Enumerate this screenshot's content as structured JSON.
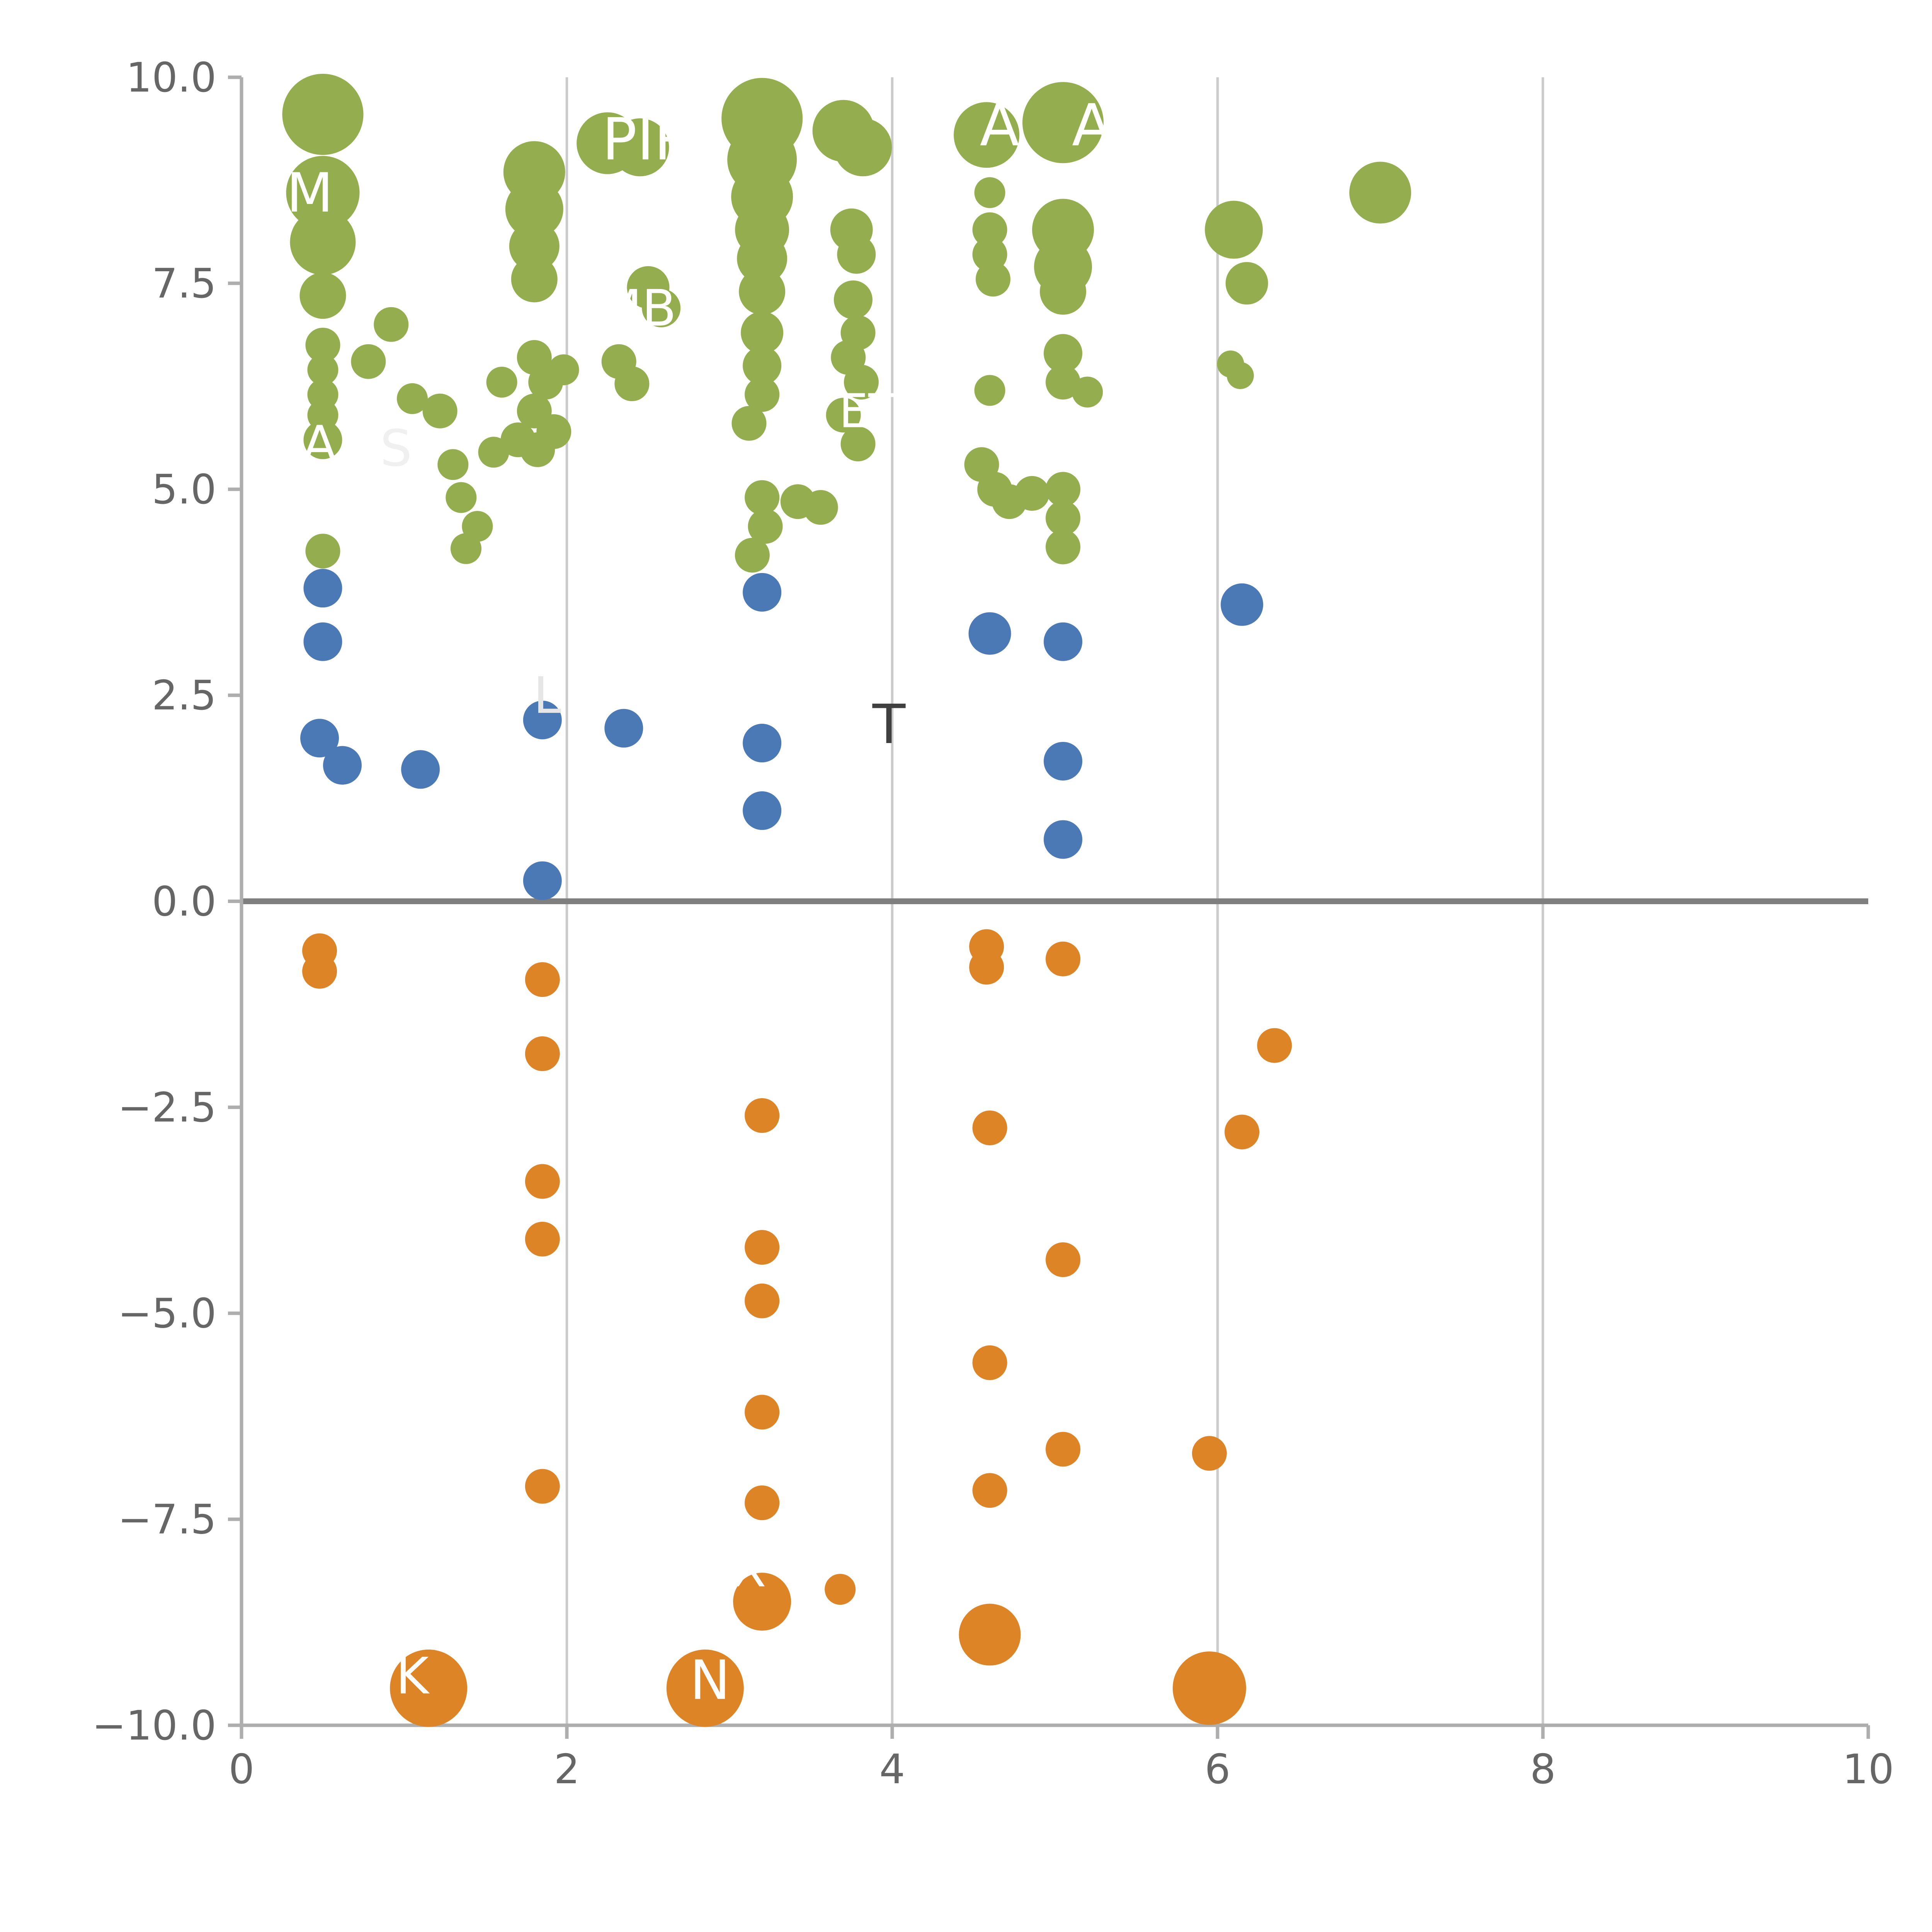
{
  "figure": {
    "background": "#ffffff"
  },
  "chart_data": {
    "type": "scatter",
    "title": "",
    "xlabel": "",
    "ylabel": "",
    "xlim": [
      0,
      10
    ],
    "ylim": [
      -10,
      10
    ],
    "xticks": [
      {
        "v": 0,
        "label": "0"
      },
      {
        "v": 2,
        "label": "2"
      },
      {
        "v": 4,
        "label": "4"
      },
      {
        "v": 6,
        "label": "6"
      },
      {
        "v": 8,
        "label": "8"
      },
      {
        "v": 10,
        "label": "10"
      }
    ],
    "yticks": [
      {
        "v": -10,
        "label": "−10.0"
      },
      {
        "v": -7.5,
        "label": "−7.5"
      },
      {
        "v": -5,
        "label": "−5.0"
      },
      {
        "v": -2.5,
        "label": "−2.5"
      },
      {
        "v": 0,
        "label": "0.0"
      },
      {
        "v": 2.5,
        "label": "2.5"
      },
      {
        "v": 5,
        "label": "5.0"
      },
      {
        "v": 7.5,
        "label": "7.5"
      },
      {
        "v": 10,
        "label": "10.0"
      }
    ],
    "gridlines": {
      "vertical_at": [
        2,
        4,
        6,
        8
      ],
      "horizontal": false,
      "color": "#cbcbcb",
      "width": 1.3
    },
    "zero_line": {
      "y": 0,
      "color": "#7f7f7f",
      "width": 3
    },
    "axis_color": "#aeaeae",
    "tick_label_color": "#666666",
    "tick_label_size": 21,
    "point_format": [
      "x",
      "y",
      "r_px"
    ],
    "series": [
      {
        "name": "group-positive-green",
        "color": "#94ad4e",
        "points": [
          [
            0.5,
            9.55,
            21
          ],
          [
            0.5,
            8.6,
            19
          ],
          [
            0.5,
            8.0,
            17
          ],
          [
            0.5,
            7.35,
            12
          ],
          [
            0.5,
            6.75,
            9
          ],
          [
            0.5,
            6.45,
            8
          ],
          [
            0.5,
            6.15,
            8
          ],
          [
            0.5,
            5.9,
            8
          ],
          [
            0.5,
            5.6,
            10
          ],
          [
            0.5,
            4.25,
            9
          ],
          [
            0.78,
            6.55,
            9
          ],
          [
            0.92,
            7.0,
            9
          ],
          [
            1.05,
            6.1,
            8
          ],
          [
            1.22,
            5.95,
            9
          ],
          [
            1.3,
            5.3,
            8
          ],
          [
            1.35,
            4.9,
            8
          ],
          [
            1.45,
            4.55,
            8
          ],
          [
            1.38,
            4.28,
            8
          ],
          [
            1.55,
            5.45,
            8
          ],
          [
            1.7,
            5.6,
            9
          ],
          [
            1.6,
            6.3,
            8
          ],
          [
            1.8,
            8.85,
            16
          ],
          [
            1.8,
            8.4,
            15
          ],
          [
            1.8,
            7.95,
            13
          ],
          [
            1.8,
            7.55,
            12
          ],
          [
            1.8,
            6.6,
            9
          ],
          [
            1.87,
            6.3,
            9
          ],
          [
            1.8,
            5.95,
            9
          ],
          [
            1.92,
            5.7,
            9
          ],
          [
            1.82,
            5.48,
            9
          ],
          [
            1.98,
            6.45,
            8
          ],
          [
            2.25,
            9.2,
            16
          ],
          [
            2.45,
            9.15,
            15
          ],
          [
            2.5,
            7.45,
            11
          ],
          [
            2.58,
            7.2,
            10
          ],
          [
            2.32,
            6.55,
            9
          ],
          [
            2.4,
            6.28,
            9
          ],
          [
            3.2,
            9.5,
            21
          ],
          [
            3.2,
            9.0,
            18
          ],
          [
            3.2,
            8.55,
            16
          ],
          [
            3.2,
            8.15,
            14
          ],
          [
            3.2,
            7.8,
            13
          ],
          [
            3.2,
            7.4,
            12
          ],
          [
            3.2,
            6.9,
            11
          ],
          [
            3.2,
            6.5,
            10
          ],
          [
            3.2,
            6.15,
            9
          ],
          [
            3.12,
            5.8,
            9
          ],
          [
            3.2,
            4.9,
            9
          ],
          [
            3.22,
            4.55,
            9
          ],
          [
            3.14,
            4.2,
            9
          ],
          [
            3.42,
            4.85,
            9
          ],
          [
            3.56,
            4.78,
            9
          ],
          [
            3.7,
            9.35,
            16
          ],
          [
            3.82,
            9.15,
            15
          ],
          [
            3.75,
            8.15,
            11
          ],
          [
            3.78,
            7.85,
            10
          ],
          [
            3.76,
            7.3,
            10
          ],
          [
            3.79,
            6.9,
            9
          ],
          [
            3.73,
            6.6,
            9
          ],
          [
            3.81,
            6.3,
            9
          ],
          [
            3.7,
            5.9,
            9
          ],
          [
            3.79,
            5.55,
            9
          ],
          [
            4.58,
            9.3,
            17
          ],
          [
            4.6,
            8.6,
            8
          ],
          [
            4.6,
            8.15,
            9
          ],
          [
            4.6,
            7.85,
            9
          ],
          [
            4.62,
            7.55,
            9
          ],
          [
            4.6,
            6.2,
            8
          ],
          [
            4.55,
            5.3,
            9
          ],
          [
            4.63,
            5.0,
            9
          ],
          [
            4.72,
            4.85,
            9
          ],
          [
            4.86,
            4.95,
            9
          ],
          [
            5.05,
            9.45,
            21
          ],
          [
            5.05,
            8.15,
            16
          ],
          [
            5.05,
            7.7,
            15
          ],
          [
            5.05,
            7.4,
            12
          ],
          [
            5.05,
            6.65,
            10
          ],
          [
            5.05,
            6.3,
            9
          ],
          [
            5.2,
            6.18,
            8
          ],
          [
            5.05,
            5.0,
            9
          ],
          [
            5.05,
            4.65,
            9
          ],
          [
            5.05,
            4.3,
            9
          ],
          [
            6.1,
            8.15,
            15
          ],
          [
            6.18,
            7.5,
            11
          ],
          [
            6.08,
            6.52,
            7
          ],
          [
            6.14,
            6.38,
            7
          ],
          [
            7.0,
            8.6,
            16
          ]
        ]
      },
      {
        "name": "group-low-positive-blue",
        "color": "#4a79b5",
        "points": [
          [
            0.5,
            3.8,
            10
          ],
          [
            0.5,
            3.15,
            10
          ],
          [
            0.48,
            1.98,
            10
          ],
          [
            0.62,
            1.65,
            10
          ],
          [
            1.1,
            1.6,
            10
          ],
          [
            1.85,
            2.2,
            10
          ],
          [
            1.85,
            0.25,
            10
          ],
          [
            2.35,
            2.1,
            10
          ],
          [
            3.2,
            3.75,
            10
          ],
          [
            3.2,
            1.92,
            10
          ],
          [
            3.2,
            1.1,
            10
          ],
          [
            4.6,
            3.25,
            11
          ],
          [
            5.05,
            3.15,
            10
          ],
          [
            5.05,
            1.7,
            10
          ],
          [
            5.05,
            0.75,
            10
          ],
          [
            6.15,
            3.6,
            11
          ]
        ]
      },
      {
        "name": "group-negative-orange",
        "color": "#dd8427",
        "points": [
          [
            0.48,
            -0.6,
            9
          ],
          [
            0.48,
            -0.85,
            9
          ],
          [
            1.15,
            -9.55,
            20
          ],
          [
            1.85,
            -0.95,
            9
          ],
          [
            1.85,
            -1.85,
            9
          ],
          [
            1.85,
            -3.4,
            9
          ],
          [
            1.85,
            -4.1,
            9
          ],
          [
            1.85,
            -7.1,
            9
          ],
          [
            2.85,
            -9.55,
            20
          ],
          [
            3.2,
            -2.6,
            9
          ],
          [
            3.2,
            -4.2,
            9
          ],
          [
            3.2,
            -4.85,
            9
          ],
          [
            3.2,
            -6.2,
            9
          ],
          [
            3.2,
            -7.3,
            9
          ],
          [
            3.2,
            -8.5,
            15
          ],
          [
            3.68,
            -8.35,
            8
          ],
          [
            4.58,
            -0.55,
            9
          ],
          [
            4.58,
            -0.8,
            9
          ],
          [
            4.6,
            -2.75,
            9
          ],
          [
            4.6,
            -5.6,
            9
          ],
          [
            4.6,
            -7.15,
            9
          ],
          [
            4.6,
            -8.9,
            16
          ],
          [
            5.05,
            -0.7,
            9
          ],
          [
            5.05,
            -4.35,
            9
          ],
          [
            5.05,
            -6.65,
            9
          ],
          [
            5.95,
            -6.7,
            9
          ],
          [
            5.95,
            -9.55,
            19
          ],
          [
            6.15,
            -2.8,
            9
          ],
          [
            6.35,
            -1.75,
            9
          ]
        ]
      }
    ],
    "labels": [
      {
        "text": "M",
        "x": 0.42,
        "y": 8.6,
        "color": "#ffffff",
        "size": 28
      },
      {
        "text": "PIR",
        "x": 2.5,
        "y": 9.25,
        "color": "#ffffff",
        "size": 30
      },
      {
        "text": "A",
        "x": 4.66,
        "y": 9.42,
        "color": "#ffffff",
        "size": 30
      },
      {
        "text": "AR",
        "x": 5.35,
        "y": 9.42,
        "color": "#ffffff",
        "size": 30
      },
      {
        "text": "MBY",
        "x": 2.52,
        "y": 7.2,
        "color": "#ffffff",
        "size": 26
      },
      {
        "text": "A",
        "x": 0.48,
        "y": 5.55,
        "color": "#ffffff",
        "size": 26
      },
      {
        "text": "S",
        "x": 0.95,
        "y": 5.5,
        "color": "#f0f0f0",
        "size": 26
      },
      {
        "text": "ET",
        "x": 3.85,
        "y": 5.95,
        "color": "#ffffff",
        "size": 24
      },
      {
        "text": "L",
        "x": 1.88,
        "y": 2.5,
        "color": "#e6e6e6",
        "size": 26
      },
      {
        "text": "T",
        "x": 3.98,
        "y": 2.15,
        "color": "#404040",
        "size": 28
      },
      {
        "text": "X",
        "x": 3.12,
        "y": -8.1,
        "color": "#ffffff",
        "size": 26
      },
      {
        "text": "N",
        "x": 2.88,
        "y": -9.45,
        "color": "#ffffff",
        "size": 28
      },
      {
        "text": "K",
        "x": 1.05,
        "y": -9.4,
        "color": "#ffffff",
        "size": 26
      }
    ]
  }
}
